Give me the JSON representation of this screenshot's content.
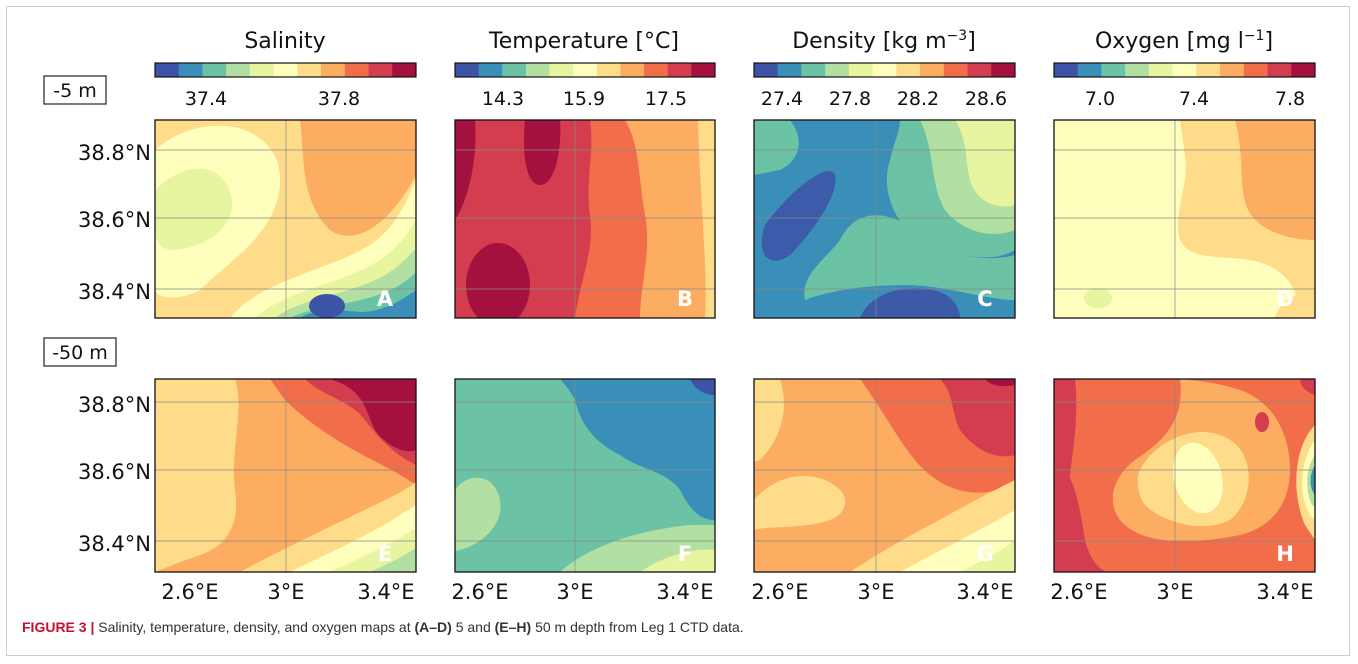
{
  "colormap": [
    "#3d54a6",
    "#3a8fb8",
    "#6cc2a5",
    "#b2e0a2",
    "#e8f5a0",
    "#fefebd",
    "#fedc8a",
    "#fcad62",
    "#f26d4a",
    "#d43d4f",
    "#a5113f"
  ],
  "row_labels": [
    "-5 m",
    "-50 m"
  ],
  "caption": {
    "figure_label": "FIGURE 3 |",
    "text_1": " Salinity, temperature, density, and oxygen maps at ",
    "bold_1": "(A–D)",
    "text_2": " 5 and ",
    "bold_2": "(E–H)",
    "text_3": " 50 m depth from Leg 1 CTD data."
  },
  "chart_data": [
    {
      "type": "heatmap",
      "panel": "A",
      "variable": "Salinity",
      "depth_label": "-5 m",
      "title": "Salinity",
      "colorbar_ticks": [
        "37.4",
        "37.8"
      ],
      "colorbar_range": [
        37.2,
        38.1
      ],
      "value_range": [
        37.25,
        37.95
      ],
      "ytick_labels": [
        "38.8°N",
        "38.6°N",
        "38.4°N"
      ],
      "ytick_values": [
        38.8,
        38.6,
        38.4
      ]
    },
    {
      "type": "heatmap",
      "panel": "B",
      "variable": "Temperature",
      "depth_label": "-5 m",
      "title": "Temperature [°C]",
      "colorbar_ticks": [
        "14.3",
        "15.9",
        "17.5"
      ],
      "colorbar_range": [
        13.5,
        18.0
      ],
      "value_range": [
        17.0,
        17.8
      ]
    },
    {
      "type": "heatmap",
      "panel": "C",
      "variable": "Density",
      "depth_label": "-5 m",
      "title": "Density [kg m⁻³]",
      "colorbar_ticks": [
        "27.4",
        "27.8",
        "28.2",
        "28.6"
      ],
      "colorbar_range": [
        27.2,
        28.8
      ],
      "value_range": [
        27.3,
        27.9
      ]
    },
    {
      "type": "heatmap",
      "panel": "D",
      "variable": "Oxygen",
      "depth_label": "-5 m",
      "title": "Oxygen [mg l⁻¹]",
      "colorbar_ticks": [
        "7.0",
        "7.4",
        "7.8"
      ],
      "colorbar_range": [
        6.8,
        7.9
      ],
      "value_range": [
        7.25,
        7.5
      ]
    },
    {
      "type": "heatmap",
      "panel": "E",
      "variable": "Salinity",
      "depth_label": "-50 m",
      "value_range": [
        37.55,
        38.05
      ],
      "ytick_labels": [
        "38.8°N",
        "38.6°N",
        "38.4°N"
      ],
      "ytick_values": [
        38.8,
        38.6,
        38.4
      ],
      "xtick_labels": [
        "2.6°E",
        "3°E",
        "3.4°E"
      ],
      "xtick_values": [
        2.6,
        3.0,
        3.4
      ]
    },
    {
      "type": "heatmap",
      "panel": "F",
      "variable": "Temperature",
      "depth_label": "-50 m",
      "value_range": [
        13.6,
        15.3
      ],
      "xtick_labels": [
        "2.6°E",
        "3°E",
        "3.4°E"
      ],
      "xtick_values": [
        2.6,
        3.0,
        3.4
      ]
    },
    {
      "type": "heatmap",
      "panel": "G",
      "variable": "Density",
      "depth_label": "-50 m",
      "value_range": [
        28.2,
        28.7
      ],
      "xtick_labels": [
        "2.6°E",
        "3°E",
        "3.4°E"
      ],
      "xtick_values": [
        2.6,
        3.0,
        3.4
      ]
    },
    {
      "type": "heatmap",
      "panel": "H",
      "variable": "Oxygen",
      "depth_label": "-50 m",
      "value_range": [
        7.2,
        7.8
      ],
      "xtick_labels": [
        "2.6°E",
        "3°E",
        "3.4°E"
      ],
      "xtick_values": [
        2.6,
        3.0,
        3.4
      ]
    }
  ]
}
